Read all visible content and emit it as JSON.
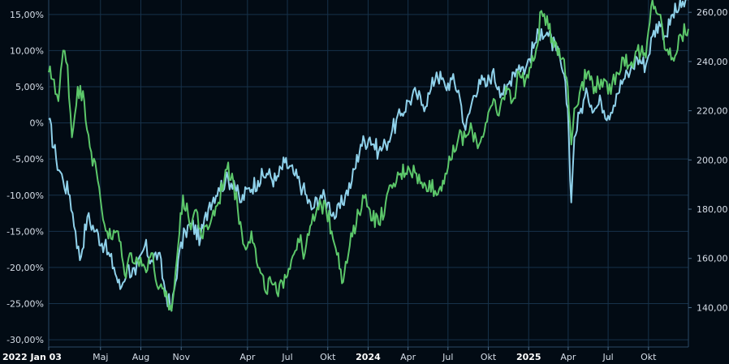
{
  "chart_data": {
    "type": "line",
    "x_start_label": "2022 Jan 03",
    "x_tick_labels": [
      {
        "label": "2022 Jan 03",
        "date": "2022-01-03",
        "bold": true
      },
      {
        "label": "Maj",
        "date": "2022-05-01",
        "bold": false
      },
      {
        "label": "Aug",
        "date": "2022-08-01",
        "bold": false
      },
      {
        "label": "Nov",
        "date": "2022-11-01",
        "bold": false
      },
      {
        "label": "Apr",
        "date": "2023-04-01",
        "bold": false
      },
      {
        "label": "Jul",
        "date": "2023-07-01",
        "bold": false
      },
      {
        "label": "Okt",
        "date": "2023-10-01",
        "bold": false
      },
      {
        "label": "2024",
        "date": "2024-01-01",
        "bold": true
      },
      {
        "label": "Apr",
        "date": "2024-04-01",
        "bold": false
      },
      {
        "label": "Jul",
        "date": "2024-07-01",
        "bold": false
      },
      {
        "label": "Okt",
        "date": "2024-10-01",
        "bold": false
      },
      {
        "label": "2025",
        "date": "2025-01-01",
        "bold": true
      },
      {
        "label": "Apr",
        "date": "2025-04-01",
        "bold": false
      },
      {
        "label": "Jul",
        "date": "2025-07-01",
        "bold": false
      },
      {
        "label": "Okt",
        "date": "2025-10-01",
        "bold": false
      }
    ],
    "x_range": [
      "2022-01-03",
      "2025-12-31"
    ],
    "left_axis": {
      "ylim": [
        -31,
        17
      ],
      "ticks": [
        15,
        10,
        5,
        0,
        -5,
        -10,
        -15,
        -20,
        -25,
        -30
      ],
      "tick_labels": [
        "15,00%",
        "10,00%",
        "5,00%",
        "0%",
        "-5,00%",
        "-10,00%",
        "-15,00%",
        "-20,00%",
        "-25,00%",
        "-30,00%"
      ]
    },
    "right_axis": {
      "ylim": [
        124,
        265
      ],
      "ticks": [
        260,
        240,
        220,
        200,
        180,
        160,
        140
      ],
      "tick_labels": [
        "260,00",
        "240,00",
        "220,00",
        "200,00",
        "180,00",
        "160,00",
        "140,00"
      ]
    },
    "grid": true,
    "series": [
      {
        "color": "#8fd1ea",
        "axis": "left",
        "points": [
          [
            "2022-01-03",
            0.5
          ],
          [
            "2022-01-20",
            -5
          ],
          [
            "2022-02-05",
            -8
          ],
          [
            "2022-02-20",
            -10
          ],
          [
            "2022-03-05",
            -15
          ],
          [
            "2022-03-15",
            -19
          ],
          [
            "2022-04-01",
            -13
          ],
          [
            "2022-04-20",
            -15
          ],
          [
            "2022-05-10",
            -17
          ],
          [
            "2022-06-01",
            -20
          ],
          [
            "2022-06-15",
            -23
          ],
          [
            "2022-07-01",
            -20
          ],
          [
            "2022-07-20",
            -21
          ],
          [
            "2022-08-10",
            -17
          ],
          [
            "2022-08-25",
            -19
          ],
          [
            "2022-09-10",
            -18
          ],
          [
            "2022-09-25",
            -23
          ],
          [
            "2022-10-10",
            -26
          ],
          [
            "2022-10-25",
            -19
          ],
          [
            "2022-11-10",
            -15
          ],
          [
            "2022-11-25",
            -14
          ],
          [
            "2022-12-15",
            -16
          ],
          [
            "2023-01-05",
            -11
          ],
          [
            "2023-01-25",
            -9
          ],
          [
            "2023-02-10",
            -8
          ],
          [
            "2023-03-01",
            -8
          ],
          [
            "2023-03-15",
            -11
          ],
          [
            "2023-04-05",
            -9
          ],
          [
            "2023-04-25",
            -8
          ],
          [
            "2023-05-15",
            -7
          ],
          [
            "2023-06-05",
            -8
          ],
          [
            "2023-06-25",
            -5.5
          ],
          [
            "2023-07-15",
            -7
          ],
          [
            "2023-08-05",
            -9
          ],
          [
            "2023-08-25",
            -12
          ],
          [
            "2023-09-15",
            -10
          ],
          [
            "2023-10-01",
            -11
          ],
          [
            "2023-10-20",
            -13
          ],
          [
            "2023-11-10",
            -10
          ],
          [
            "2023-11-25",
            -8
          ],
          [
            "2023-12-15",
            -3
          ],
          [
            "2024-01-05",
            -2
          ],
          [
            "2024-01-25",
            -4
          ],
          [
            "2024-02-10",
            -3
          ],
          [
            "2024-02-25",
            -1
          ],
          [
            "2024-03-15",
            1
          ],
          [
            "2024-04-01",
            3
          ],
          [
            "2024-04-20",
            4
          ],
          [
            "2024-05-05",
            2.5
          ],
          [
            "2024-05-20",
            4
          ],
          [
            "2024-06-05",
            7
          ],
          [
            "2024-06-25",
            5
          ],
          [
            "2024-07-10",
            6
          ],
          [
            "2024-07-25",
            4.5
          ],
          [
            "2024-08-10",
            -1
          ],
          [
            "2024-08-25",
            3
          ],
          [
            "2024-09-10",
            6
          ],
          [
            "2024-09-25",
            5
          ],
          [
            "2024-10-10",
            7
          ],
          [
            "2024-10-25",
            5
          ],
          [
            "2024-11-10",
            4
          ],
          [
            "2024-11-25",
            7
          ],
          [
            "2024-12-10",
            8
          ],
          [
            "2024-12-25",
            7.5
          ],
          [
            "2025-01-15",
            11
          ],
          [
            "2025-01-30",
            13
          ],
          [
            "2025-02-15",
            12
          ],
          [
            "2025-03-05",
            10
          ],
          [
            "2025-03-20",
            7
          ],
          [
            "2025-03-31",
            2
          ],
          [
            "2025-04-08",
            -11
          ],
          [
            "2025-04-15",
            -2
          ],
          [
            "2025-04-30",
            2
          ],
          [
            "2025-05-15",
            4
          ],
          [
            "2025-06-01",
            2
          ],
          [
            "2025-06-15",
            3
          ],
          [
            "2025-07-01",
            1
          ],
          [
            "2025-07-20",
            4
          ],
          [
            "2025-08-05",
            6
          ],
          [
            "2025-08-20",
            7
          ],
          [
            "2025-09-05",
            9
          ],
          [
            "2025-09-25",
            8
          ],
          [
            "2025-10-10",
            12
          ],
          [
            "2025-10-25",
            14
          ],
          [
            "2025-11-10",
            12
          ],
          [
            "2025-11-25",
            15
          ],
          [
            "2025-12-15",
            16
          ],
          [
            "2025-12-31",
            17
          ]
        ]
      },
      {
        "color": "#5cc76a",
        "axis": "left",
        "points": [
          [
            "2022-01-03",
            7
          ],
          [
            "2022-01-15",
            6
          ],
          [
            "2022-01-25",
            3
          ],
          [
            "2022-02-05",
            10
          ],
          [
            "2022-02-15",
            8
          ],
          [
            "2022-02-25",
            -2
          ],
          [
            "2022-03-10",
            5
          ],
          [
            "2022-03-25",
            3
          ],
          [
            "2022-04-10",
            -4
          ],
          [
            "2022-04-25",
            -8
          ],
          [
            "2022-05-10",
            -14
          ],
          [
            "2022-05-25",
            -16
          ],
          [
            "2022-06-10",
            -15
          ],
          [
            "2022-06-25",
            -21
          ],
          [
            "2022-07-10",
            -18
          ],
          [
            "2022-07-25",
            -19
          ],
          [
            "2022-08-10",
            -20
          ],
          [
            "2022-08-25",
            -18
          ],
          [
            "2022-09-10",
            -23
          ],
          [
            "2022-09-25",
            -24
          ],
          [
            "2022-10-10",
            -26
          ],
          [
            "2022-10-25",
            -17
          ],
          [
            "2022-11-05",
            -10
          ],
          [
            "2022-11-20",
            -14
          ],
          [
            "2022-12-05",
            -12
          ],
          [
            "2022-12-20",
            -16
          ],
          [
            "2023-01-10",
            -13
          ],
          [
            "2023-01-25",
            -11
          ],
          [
            "2023-02-10",
            -6.5
          ],
          [
            "2023-02-25",
            -7
          ],
          [
            "2023-03-10",
            -12
          ],
          [
            "2023-03-25",
            -17
          ],
          [
            "2023-04-10",
            -15
          ],
          [
            "2023-04-25",
            -20
          ],
          [
            "2023-05-10",
            -23
          ],
          [
            "2023-05-25",
            -22
          ],
          [
            "2023-06-10",
            -24
          ],
          [
            "2023-06-25",
            -21
          ],
          [
            "2023-07-10",
            -19
          ],
          [
            "2023-07-25",
            -16
          ],
          [
            "2023-08-10",
            -18
          ],
          [
            "2023-08-25",
            -14
          ],
          [
            "2023-09-10",
            -12
          ],
          [
            "2023-09-25",
            -11
          ],
          [
            "2023-10-10",
            -15
          ],
          [
            "2023-10-25",
            -18
          ],
          [
            "2023-11-05",
            -22
          ],
          [
            "2023-11-20",
            -17
          ],
          [
            "2023-12-05",
            -14
          ],
          [
            "2023-12-20",
            -10
          ],
          [
            "2024-01-05",
            -12
          ],
          [
            "2024-01-25",
            -14
          ],
          [
            "2024-02-10",
            -11
          ],
          [
            "2024-02-25",
            -9
          ],
          [
            "2024-03-15",
            -7
          ],
          [
            "2024-04-01",
            -6
          ],
          [
            "2024-04-20",
            -7
          ],
          [
            "2024-05-05",
            -9
          ],
          [
            "2024-05-20",
            -8
          ],
          [
            "2024-06-05",
            -10
          ],
          [
            "2024-06-25",
            -7
          ],
          [
            "2024-07-10",
            -5
          ],
          [
            "2024-07-25",
            -2
          ],
          [
            "2024-08-10",
            -2
          ],
          [
            "2024-08-25",
            -1
          ],
          [
            "2024-09-10",
            -3
          ],
          [
            "2024-09-25",
            0
          ],
          [
            "2024-10-10",
            2.5
          ],
          [
            "2024-10-25",
            1
          ],
          [
            "2024-11-10",
            5
          ],
          [
            "2024-11-25",
            3
          ],
          [
            "2024-12-10",
            7
          ],
          [
            "2024-12-25",
            6
          ],
          [
            "2025-01-15",
            9
          ],
          [
            "2025-01-30",
            15.5
          ],
          [
            "2025-02-15",
            13
          ],
          [
            "2025-03-05",
            11
          ],
          [
            "2025-03-20",
            9
          ],
          [
            "2025-03-31",
            5
          ],
          [
            "2025-04-08",
            -3
          ],
          [
            "2025-04-15",
            2
          ],
          [
            "2025-04-30",
            5
          ],
          [
            "2025-05-15",
            7
          ],
          [
            "2025-06-01",
            5
          ],
          [
            "2025-06-15",
            6
          ],
          [
            "2025-07-01",
            4
          ],
          [
            "2025-07-20",
            7
          ],
          [
            "2025-08-05",
            9
          ],
          [
            "2025-08-20",
            8
          ],
          [
            "2025-09-05",
            10
          ],
          [
            "2025-09-25",
            9
          ],
          [
            "2025-10-10",
            17
          ],
          [
            "2025-10-25",
            15
          ],
          [
            "2025-11-10",
            10
          ],
          [
            "2025-11-25",
            9
          ],
          [
            "2025-12-15",
            12
          ],
          [
            "2025-12-31",
            13
          ]
        ]
      }
    ]
  }
}
